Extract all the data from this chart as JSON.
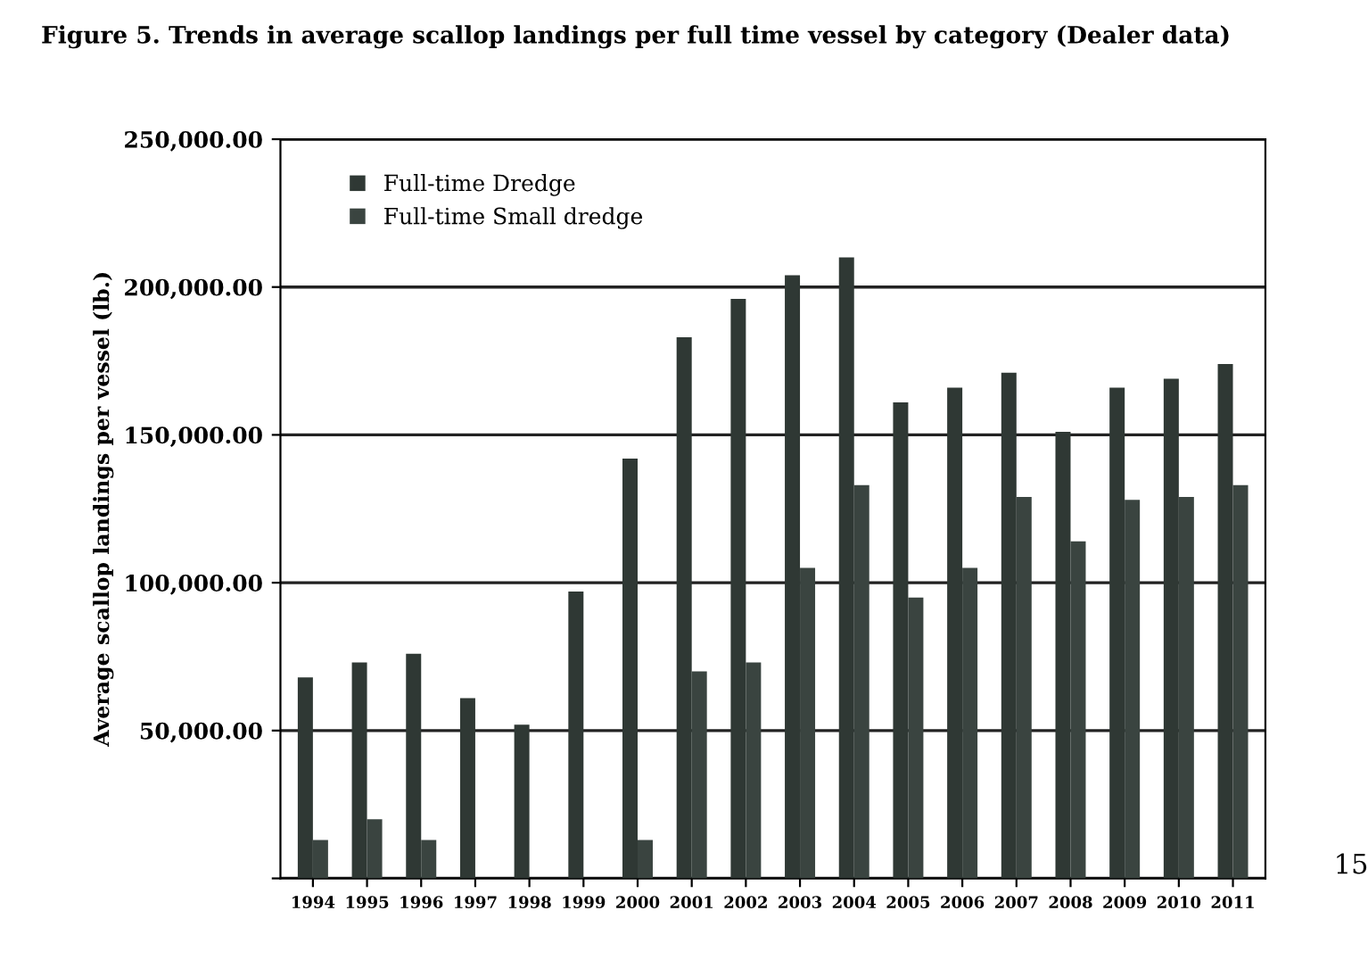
{
  "chart_data": {
    "type": "bar",
    "title": "Figure 5. Trends in average scallop landings per full time vessel by category (Dealer data)",
    "ylabel": "Average scallop landings per vessel (lb.)",
    "categories": [
      "1994",
      "1995",
      "1996",
      "1997",
      "1998",
      "1999",
      "2000",
      "2001",
      "2002",
      "2003",
      "2004",
      "2005",
      "2006",
      "2007",
      "2008",
      "2009",
      "2010",
      "2011"
    ],
    "series": [
      {
        "name": "Full-time Dredge",
        "color": "#2f3834",
        "values": [
          68000,
          73000,
          76000,
          61000,
          52000,
          97000,
          142000,
          183000,
          196000,
          204000,
          210000,
          161000,
          166000,
          171000,
          151000,
          166000,
          169000,
          174000
        ]
      },
      {
        "name": "Full-time Small dredge",
        "color": "#3a4440",
        "values": [
          13000,
          20000,
          13000,
          0,
          null,
          0,
          13000,
          70000,
          73000,
          105000,
          133000,
          95000,
          105000,
          129000,
          114000,
          128000,
          129000,
          133000
        ]
      }
    ],
    "ylim": [
      0,
      250000
    ],
    "yticks": [
      {
        "value": 0,
        "label": null
      },
      {
        "value": 50000,
        "label": "50,000.00"
      },
      {
        "value": 100000,
        "label": "100,000.00"
      },
      {
        "value": 150000,
        "label": "150,000.00"
      },
      {
        "value": 200000,
        "label": "200,000.00"
      },
      {
        "value": 250000,
        "label": "250,000.00"
      }
    ],
    "grid": "y",
    "legend": "top left",
    "annotations": [
      "15"
    ]
  }
}
